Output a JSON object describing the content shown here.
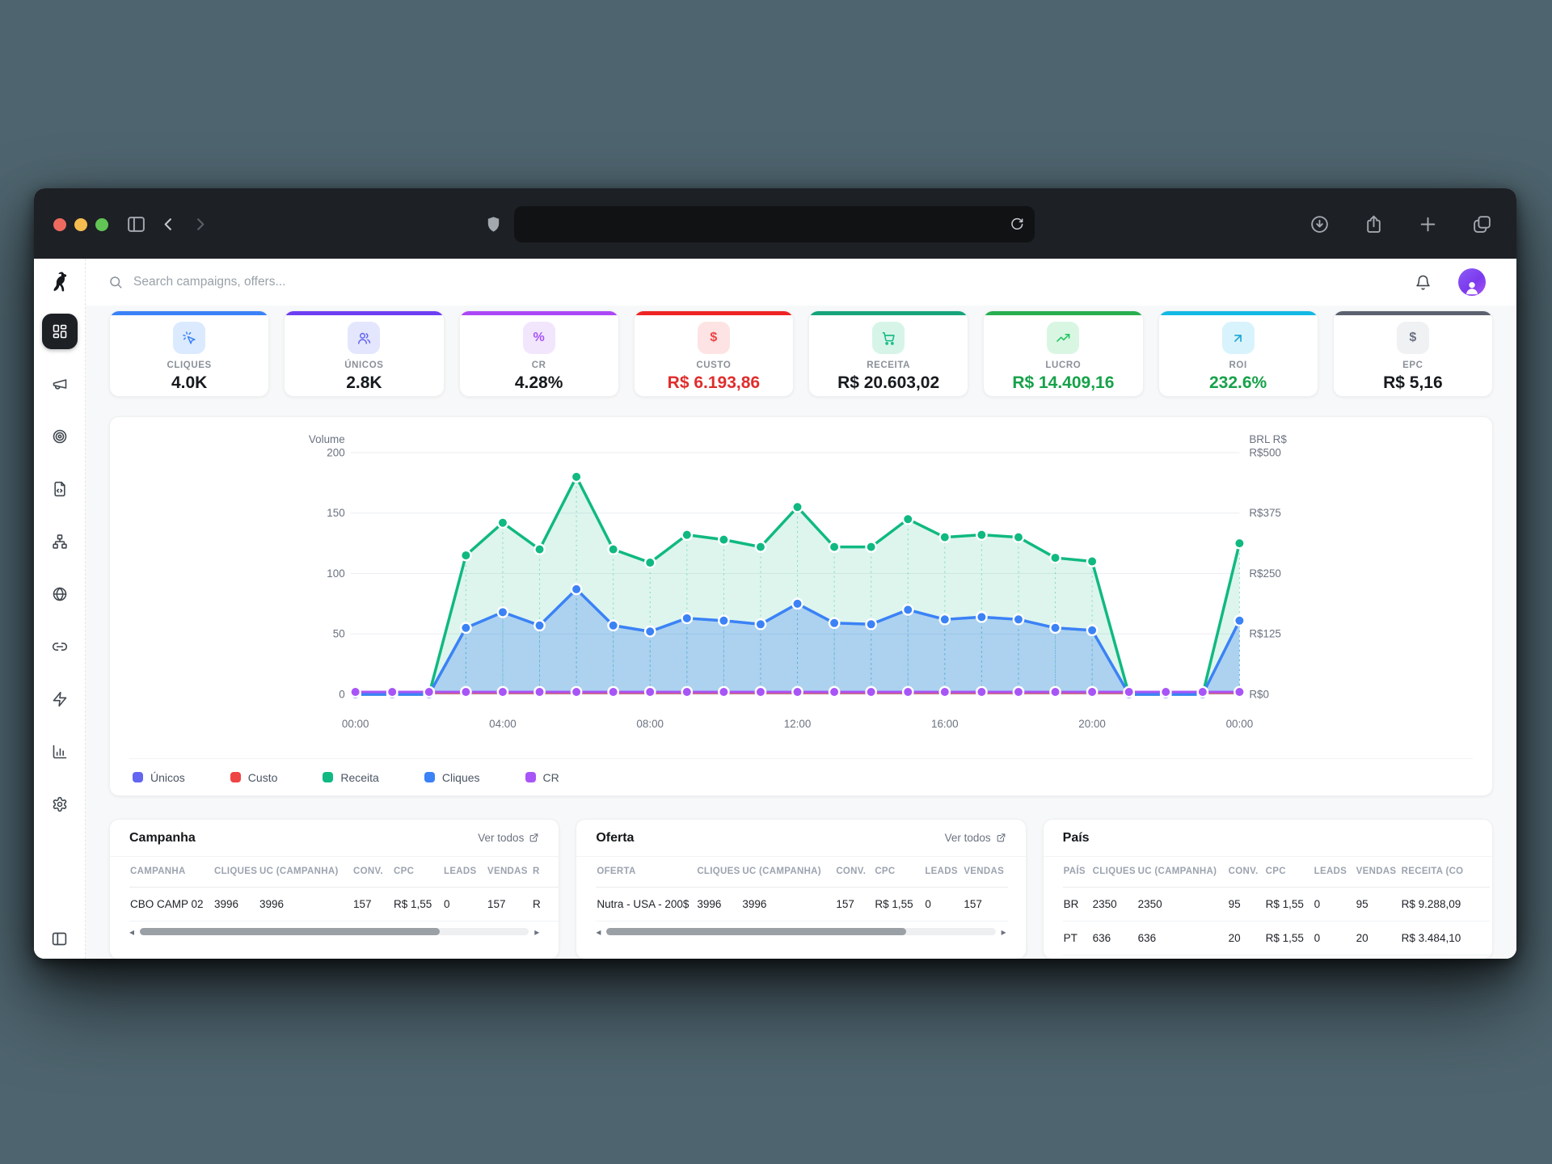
{
  "browser": {
    "traffic_lights": [
      {
        "name": "close",
        "color": "#ee6a5f"
      },
      {
        "name": "minimize",
        "color": "#f5bd4f"
      },
      {
        "name": "zoom",
        "color": "#61c454"
      }
    ],
    "address_bar": {
      "value": ""
    },
    "icons": [
      "sidebar-toggle",
      "back",
      "forward",
      "shield",
      "reload",
      "downloads",
      "share",
      "new-tab",
      "tab-overview"
    ]
  },
  "topbar": {
    "search_placeholder": "Search campaigns, offers...",
    "icons": [
      "search",
      "bell",
      "avatar"
    ]
  },
  "logo_icon": "dog",
  "sidebar": {
    "items": [
      {
        "icon": "layout-dashboard",
        "active": true
      },
      {
        "icon": "megaphone",
        "active": false
      },
      {
        "icon": "target",
        "active": false
      },
      {
        "icon": "file-code",
        "active": false
      },
      {
        "icon": "sitemap",
        "active": false
      },
      {
        "icon": "globe",
        "active": false
      },
      {
        "icon": "link",
        "active": false
      },
      {
        "icon": "zap",
        "active": false
      },
      {
        "icon": "bar-chart",
        "active": false
      },
      {
        "icon": "gear",
        "active": false
      }
    ],
    "bottom_icon": "panel-left"
  },
  "kpi_cards": [
    {
      "label": "CLIQUES",
      "value": "4.0K",
      "accent": "#3b82f6",
      "icon": "cursor-click",
      "icon_color": "#3b82f6",
      "icon_bg": "#dbeafe",
      "value_color": "#171a1e"
    },
    {
      "label": "ÚNICOS",
      "value": "2.8K",
      "accent": "#6d3ef2",
      "icon": "users",
      "icon_color": "#6366f1",
      "icon_bg": "#e3e6fd",
      "value_color": "#171a1e"
    },
    {
      "label": "CR",
      "value": "4.28%",
      "accent": "#ab47f5",
      "icon": "text:%",
      "icon_color": "#a855f7",
      "icon_bg": "#f2e6fd",
      "value_color": "#171a1e"
    },
    {
      "label": "CUSTO",
      "value": "R$ 6.193,86",
      "accent": "#ee2424",
      "icon": "text:$",
      "icon_color": "#ef4444",
      "icon_bg": "#fde3e3",
      "value_color": "#e02d2d"
    },
    {
      "label": "RECEITA",
      "value": "R$ 20.603,02",
      "accent": "#16a57a",
      "icon": "cart",
      "icon_color": "#10b981",
      "icon_bg": "#d6f5e8",
      "value_color": "#171a1e"
    },
    {
      "label": "LUCRO",
      "value": "R$ 14.409,16",
      "accent": "#27ae4f",
      "icon": "trend-up",
      "icon_color": "#22c55e",
      "icon_bg": "#d9f6e3",
      "value_color": "#17a24a"
    },
    {
      "label": "ROI",
      "value": "232.6%",
      "accent": "#14b8e4",
      "icon": "arrow-up-right",
      "icon_color": "#1aa7d4",
      "icon_bg": "#d8f3fb",
      "value_color": "#17a24a"
    },
    {
      "label": "EPC",
      "value": "R$ 5,16",
      "accent": "#5b616e",
      "icon": "text:$",
      "icon_color": "#6b7280",
      "icon_bg": "#f0f1f3",
      "value_color": "#171a1e"
    }
  ],
  "chart_data": {
    "type": "area",
    "x": [
      "00:00",
      "01:00",
      "02:00",
      "03:00",
      "04:00",
      "05:00",
      "06:00",
      "07:00",
      "08:00",
      "09:00",
      "10:00",
      "11:00",
      "12:00",
      "13:00",
      "14:00",
      "15:00",
      "16:00",
      "17:00",
      "18:00",
      "19:00",
      "20:00",
      "21:00",
      "22:00",
      "23:00",
      "00:00"
    ],
    "x_tick_indices": [
      0,
      4,
      8,
      12,
      16,
      20,
      24
    ],
    "left_axis": {
      "title": "Volume",
      "ticks": [
        0,
        50,
        100,
        150,
        200
      ],
      "range": [
        0,
        200
      ]
    },
    "right_axis": {
      "title": "BRL R$",
      "ticks": [
        "R$0",
        "R$125",
        "R$250",
        "R$375",
        "R$500"
      ],
      "range": [
        0,
        500
      ]
    },
    "grid": true,
    "legend_position": "bottom-left",
    "series": [
      {
        "name": "Únicos",
        "color": "#6366f1",
        "width": 3,
        "dots": false,
        "area": false,
        "values": [
          0,
          0,
          0,
          55,
          68,
          57,
          87,
          57,
          52,
          63,
          61,
          58,
          75,
          59,
          58,
          70,
          62,
          64,
          62,
          55,
          53,
          0,
          0,
          0,
          61
        ]
      },
      {
        "name": "Custo",
        "color": "#ef4444",
        "width": 2,
        "dots": false,
        "area": false,
        "values": [
          1,
          1,
          1,
          1,
          1,
          1,
          1,
          1,
          1,
          1,
          1,
          1,
          1,
          1,
          1,
          1,
          1,
          1,
          1,
          1,
          1,
          1,
          1,
          1,
          1
        ]
      },
      {
        "name": "Receita",
        "color": "#10b981",
        "width": 3.5,
        "dots": true,
        "area": true,
        "fill_color": "rgba(16,185,129,0.14)",
        "values": [
          0,
          0,
          0,
          115,
          142,
          120,
          180,
          120,
          109,
          132,
          128,
          122,
          155,
          122,
          122,
          145,
          130,
          132,
          130,
          113,
          110,
          0,
          0,
          0,
          125
        ]
      },
      {
        "name": "Cliques",
        "color": "#3b82f6",
        "width": 3.5,
        "dots": true,
        "area": true,
        "fill_color": "rgba(59,130,246,0.30)",
        "values": [
          0,
          0,
          0,
          55,
          68,
          57,
          87,
          57,
          52,
          63,
          61,
          58,
          75,
          59,
          58,
          70,
          62,
          64,
          62,
          55,
          53,
          0,
          0,
          0,
          61
        ]
      },
      {
        "name": "CR",
        "color": "#a855f7",
        "width": 3,
        "dots": true,
        "area": false,
        "values": [
          2,
          2,
          2,
          2,
          2,
          2,
          2,
          2,
          2,
          2,
          2,
          2,
          2,
          2,
          2,
          2,
          2,
          2,
          2,
          2,
          2,
          2,
          2,
          2,
          2
        ]
      }
    ]
  },
  "tables": [
    {
      "title": "Campanha",
      "link_label": "Ver todos",
      "scrollbar": true,
      "columns": [
        "CAMPANHA",
        "CLIQUES",
        "UC (CAMPANHA)",
        "CONV.",
        "CPC",
        "LEADS",
        "VENDAS",
        "R"
      ],
      "rows": [
        [
          "CBO CAMP 02",
          "3996",
          "3996",
          "157",
          "R$ 1,55",
          "0",
          "157",
          "R"
        ]
      ]
    },
    {
      "title": "Oferta",
      "link_label": "Ver todos",
      "scrollbar": true,
      "columns": [
        "OFERTA",
        "CLIQUES",
        "UC (CAMPANHA)",
        "CONV.",
        "CPC",
        "LEADS",
        "VENDAS"
      ],
      "rows": [
        [
          "Nutra - USA - 200$",
          "3996",
          "3996",
          "157",
          "R$ 1,55",
          "0",
          "157"
        ]
      ]
    },
    {
      "title": "País",
      "link_label": "",
      "scrollbar": false,
      "columns": [
        "PAÍS",
        "CLIQUES",
        "UC (CAMPANHA)",
        "CONV.",
        "CPC",
        "LEADS",
        "VENDAS",
        "RECEITA (CO"
      ],
      "rows": [
        [
          "BR",
          "2350",
          "2350",
          "95",
          "R$ 1,55",
          "0",
          "95",
          "R$ 9.288,09"
        ],
        [
          "PT",
          "636",
          "636",
          "20",
          "R$ 1,55",
          "0",
          "20",
          "R$ 3.484,10"
        ]
      ]
    }
  ]
}
